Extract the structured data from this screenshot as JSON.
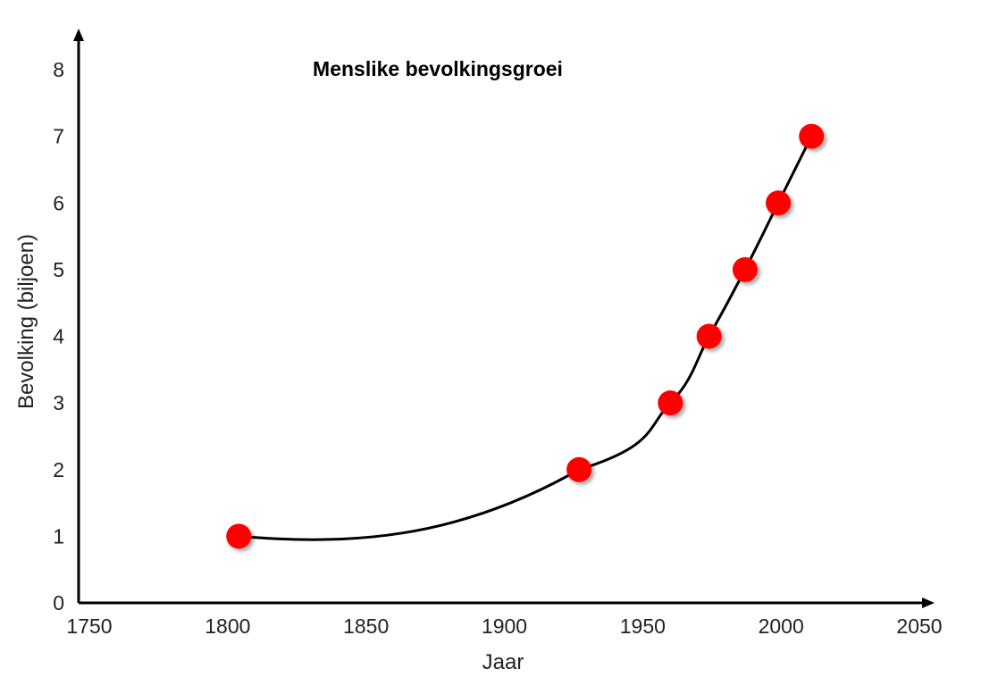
{
  "chart_data": {
    "type": "scatter",
    "title": "Menslike bevolkingsgroei",
    "xlabel": "Jaar",
    "ylabel": "Bevolking (biljoen)",
    "xlim": [
      1750,
      2050
    ],
    "ylim": [
      0,
      8
    ],
    "x_ticks": [
      "1750",
      "1800",
      "1850",
      "1900",
      "1950",
      "2000",
      "2050"
    ],
    "y_ticks": [
      "0",
      "1",
      "2",
      "3",
      "4",
      "5",
      "6",
      "7",
      "8"
    ],
    "grid": false,
    "series": [
      {
        "points": [
          {
            "x": 1804,
            "y": 1.0
          },
          {
            "x": 1927,
            "y": 2.0
          },
          {
            "x": 1960,
            "y": 3.0
          },
          {
            "x": 1974,
            "y": 4.0
          },
          {
            "x": 1987,
            "y": 5.0
          },
          {
            "x": 1999,
            "y": 6.0
          },
          {
            "x": 2011,
            "y": 7.0
          }
        ],
        "marker_color": "#ff0000",
        "trend_line": true,
        "line_color": "#000000"
      }
    ]
  }
}
